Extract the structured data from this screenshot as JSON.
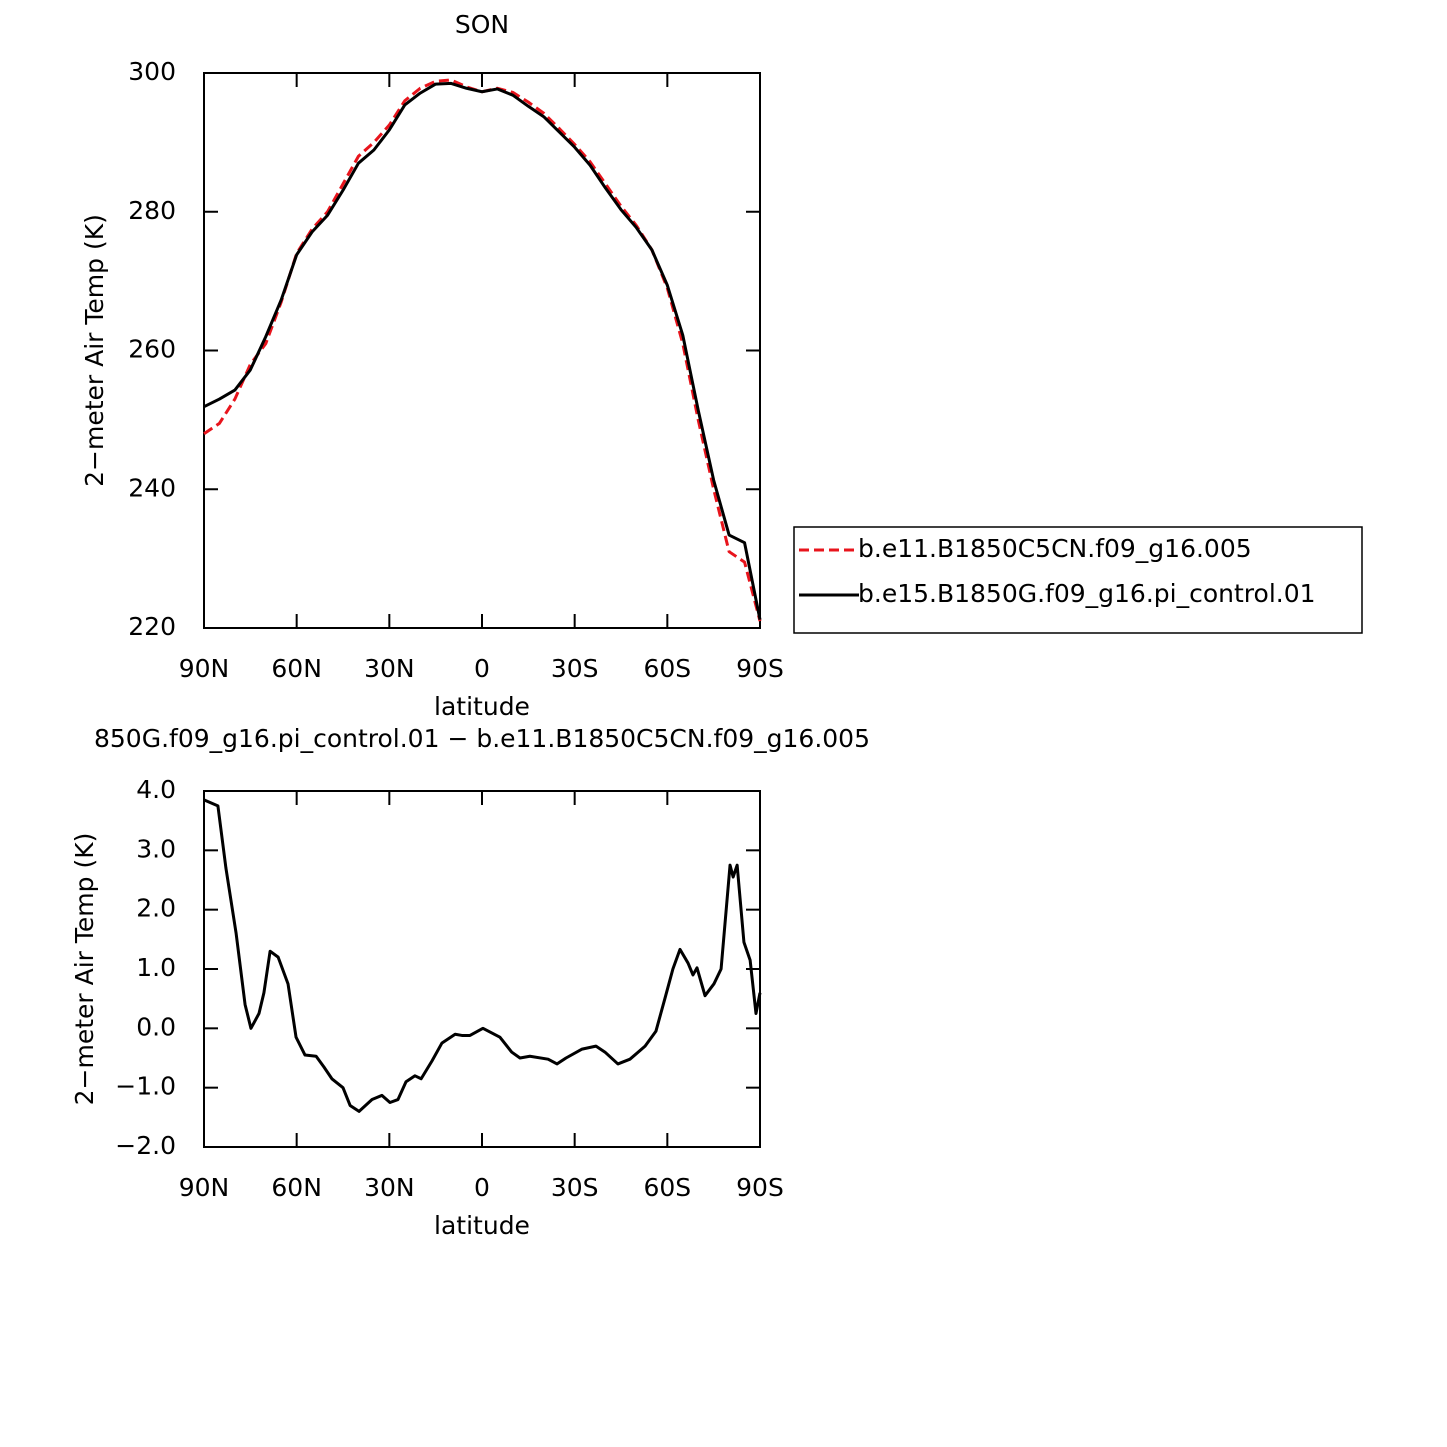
{
  "chart_data": [
    {
      "type": "line",
      "title": "SON",
      "xlabel": "latitude",
      "ylabel": "2−meter Air Temp (K)",
      "xlim": [
        90,
        -90
      ],
      "xticks": [
        {
          "value": 90,
          "label": "90N"
        },
        {
          "value": 60,
          "label": "60N"
        },
        {
          "value": 30,
          "label": "30N"
        },
        0,
        {
          "value": -30,
          "label": "30S"
        },
        {
          "value": -60,
          "label": "60S"
        },
        {
          "value": -90,
          "label": "90S"
        }
      ],
      "ylim": [
        220,
        300
      ],
      "yticks": [
        220,
        240,
        260,
        280,
        300
      ],
      "legend": "right",
      "x": [
        90,
        85,
        80,
        75,
        70,
        65,
        60,
        55,
        50,
        45,
        40,
        35,
        30,
        25,
        20,
        15,
        10,
        5,
        0,
        -5,
        -10,
        -15,
        -20,
        -25,
        -30,
        -35,
        -40,
        -45,
        -50,
        -55,
        -60,
        -65,
        -70,
        -75,
        -80,
        -85,
        -90
      ],
      "series": [
        {
          "name": "b.e11.B1850C5CN.f09_g16.005",
          "color": "#e8141c",
          "linestyle": "dashed",
          "values": [
            248,
            249.5,
            253,
            258,
            261,
            267,
            274,
            277.5,
            280,
            284,
            288,
            290,
            292.5,
            296,
            297.8,
            298.8,
            299,
            298,
            297.3,
            297.8,
            297.2,
            295.8,
            294.2,
            292,
            289.7,
            287.2,
            284,
            280.8,
            278,
            274.5,
            269,
            261,
            250,
            240,
            231,
            229.5,
            221
          ]
        },
        {
          "name": "b.e15.B1850G.f09_g16.pi_control.01",
          "color": "#000000",
          "linestyle": "solid",
          "values": [
            251.9,
            253,
            254.3,
            257.2,
            262,
            267.3,
            273.8,
            277.1,
            279.5,
            283.1,
            287,
            288.9,
            291.8,
            295.4,
            297.1,
            298.4,
            298.5,
            297.8,
            297.3,
            297.7,
            296.8,
            295.2,
            293.7,
            291.5,
            289.3,
            286.7,
            283.4,
            280.3,
            277.7,
            274.5,
            269.4,
            262.2,
            251.4,
            241.3,
            233.4,
            232.3,
            221.2
          ]
        }
      ]
    },
    {
      "type": "line",
      "title": "850G.f09_g16.pi_control.01 − b.e11.B1850C5CN.f09_g16.005",
      "xlabel": "latitude",
      "ylabel": "2−meter Air Temp (K)",
      "xlim": [
        90,
        -90
      ],
      "xticks": [
        {
          "value": 90,
          "label": "90N"
        },
        {
          "value": 60,
          "label": "60N"
        },
        {
          "value": 30,
          "label": "30N"
        },
        0,
        {
          "value": -30,
          "label": "30S"
        },
        {
          "value": -60,
          "label": "60S"
        },
        {
          "value": -90,
          "label": "90S"
        }
      ],
      "ylim": [
        -2,
        4
      ],
      "yticks": [
        {
          "value": -2,
          "label": "−2.0"
        },
        {
          "value": -1,
          "label": "−1.0"
        },
        {
          "value": 0,
          "label": "0.0"
        },
        {
          "value": 1,
          "label": "1.0"
        },
        {
          "value": 2,
          "label": "2.0"
        },
        {
          "value": 3,
          "label": "3.0"
        },
        {
          "value": 4,
          "label": "4.0"
        }
      ],
      "x": [
        90,
        85.5,
        82.9,
        79.6,
        76.7,
        74.8,
        72.2,
        70.6,
        68.6,
        66,
        62.8,
        60.2,
        57.3,
        53.7,
        51.2,
        48.6,
        45,
        42.7,
        39.8,
        35.6,
        32.4,
        29.8,
        27.2,
        24.6,
        21.7,
        19.7,
        16.2,
        13,
        8.7,
        6.5,
        3.9,
        -0.3,
        -5.8,
        -9.6,
        -12.3,
        -15.5,
        -21.4,
        -24.3,
        -27.2,
        -32.4,
        -36.9,
        -39.8,
        -44,
        -47.9,
        -52.8,
        -56.3,
        -59.2,
        -61.8,
        -64.1,
        -66.7,
        -68.3,
        -69.6,
        -72.2,
        -75.1,
        -77.4,
        -80.3,
        -81.3,
        -82.6,
        -84.8,
        -86.8,
        -88.7,
        -90
      ],
      "series": [
        {
          "color": "#000000",
          "linestyle": "solid",
          "values": [
            3.85,
            3.75,
            2.7,
            1.6,
            0.4,
            0,
            0.25,
            0.6,
            1.3,
            1.2,
            0.75,
            -0.15,
            -0.45,
            -0.47,
            -0.65,
            -0.85,
            -1,
            -1.3,
            -1.4,
            -1.2,
            -1.13,
            -1.25,
            -1.2,
            -0.9,
            -0.8,
            -0.85,
            -0.55,
            -0.25,
            -0.1,
            -0.12,
            -0.12,
            0,
            -0.15,
            -0.4,
            -0.5,
            -0.47,
            -0.52,
            -0.6,
            -0.5,
            -0.35,
            -0.3,
            -0.4,
            -0.6,
            -0.52,
            -0.3,
            -0.05,
            0.5,
            1,
            1.33,
            1.1,
            0.9,
            1.02,
            0.55,
            0.75,
            1,
            2.75,
            2.55,
            2.75,
            1.45,
            1.15,
            0.25,
            0.6
          ]
        }
      ]
    }
  ]
}
